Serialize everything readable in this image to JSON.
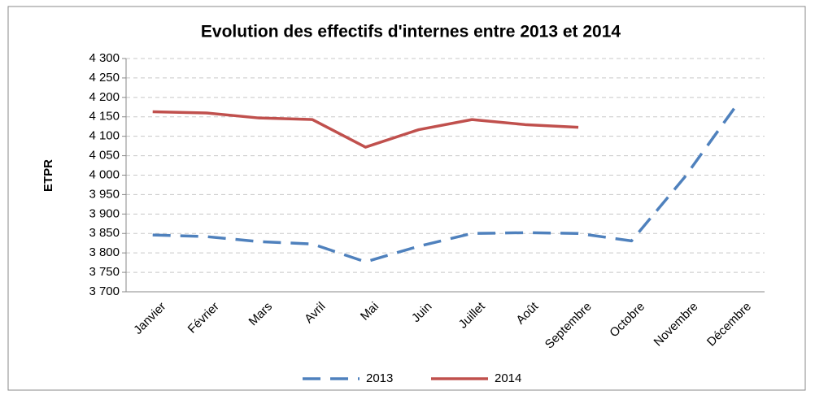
{
  "chart_data": {
    "type": "line",
    "title": "Evolution des effectifs d'internes entre 2013 et 2014",
    "ylabel": "ETPR",
    "categories": [
      "Janvier",
      "Février",
      "Mars",
      "Avril",
      "Mai",
      "Juin",
      "Juillet",
      "Août",
      "Septembre",
      "Octobre",
      "Novembre",
      "Décembre"
    ],
    "series": [
      {
        "name": "2013",
        "color": "#4f81bd",
        "dash": true,
        "values": [
          3846,
          3842,
          3829,
          3823,
          3777,
          3817,
          3850,
          3852,
          3850,
          3831,
          3995,
          4185
        ]
      },
      {
        "name": "2014",
        "color": "#c0504d",
        "dash": false,
        "values": [
          4163,
          4160,
          4147,
          4143,
          4072,
          4117,
          4143,
          4130,
          4123,
          null,
          null,
          null
        ]
      }
    ],
    "ylim": [
      3700,
      4300
    ],
    "yticks": [
      {
        "value": 3700,
        "label": "3 700"
      },
      {
        "value": 3750,
        "label": "3 750"
      },
      {
        "value": 3800,
        "label": "3 800"
      },
      {
        "value": 3850,
        "label": "3 850"
      },
      {
        "value": 3900,
        "label": "3 900"
      },
      {
        "value": 3950,
        "label": "3 950"
      },
      {
        "value": 4000,
        "label": "4 000"
      },
      {
        "value": 4050,
        "label": "4 050"
      },
      {
        "value": 4100,
        "label": "4 100"
      },
      {
        "value": 4150,
        "label": "4 150"
      },
      {
        "value": 4200,
        "label": "4 200"
      },
      {
        "value": 4250,
        "label": "4 250"
      },
      {
        "value": 4300,
        "label": "4 300"
      }
    ],
    "grid": true,
    "legend": "bottom"
  }
}
